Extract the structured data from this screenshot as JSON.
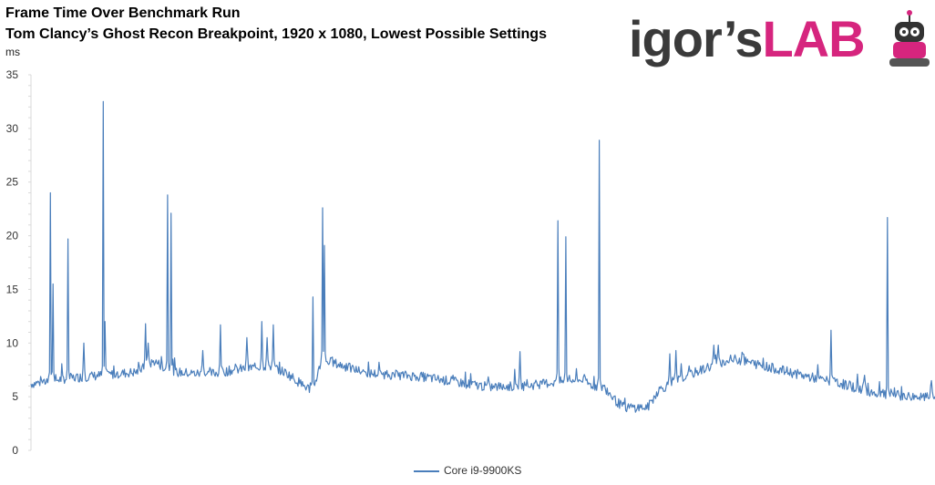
{
  "chart_data": {
    "type": "line",
    "title": "Frame Time Over Benchmark Run",
    "subtitle": "Tom Clancy’s Ghost Recon Breakpoint, 1920 x 1080, Lowest Possible Settings",
    "ylabel": "ms",
    "xlabel": "",
    "ylim": [
      0,
      35
    ],
    "yticks": [
      0,
      5,
      10,
      15,
      20,
      25,
      30,
      35
    ],
    "grid": false,
    "legend_position": "bottom",
    "series": [
      {
        "name": "Core i9-9900KS",
        "color": "#4a7ebb",
        "baseline": [
          [
            0,
            6.2
          ],
          [
            40,
            6.7
          ],
          [
            80,
            7.0
          ],
          [
            120,
            7.3
          ],
          [
            140,
            8.3
          ],
          [
            160,
            7.3
          ],
          [
            200,
            7.1
          ],
          [
            240,
            7.6
          ],
          [
            270,
            7.9
          ],
          [
            290,
            7.2
          ],
          [
            310,
            6.0
          ],
          [
            320,
            5.6
          ],
          [
            330,
            8.5
          ],
          [
            380,
            7.2
          ],
          [
            440,
            6.9
          ],
          [
            480,
            6.4
          ],
          [
            520,
            5.9
          ],
          [
            560,
            6.0
          ],
          [
            600,
            6.4
          ],
          [
            625,
            6.6
          ],
          [
            635,
            6.1
          ],
          [
            650,
            5.9
          ],
          [
            665,
            4.5
          ],
          [
            673,
            4.0
          ],
          [
            700,
            4.0
          ],
          [
            712,
            5.6
          ],
          [
            740,
            6.8
          ],
          [
            770,
            7.8
          ],
          [
            800,
            8.5
          ],
          [
            840,
            7.7
          ],
          [
            880,
            6.9
          ],
          [
            920,
            6.2
          ],
          [
            960,
            5.3
          ],
          [
            1000,
            5.0
          ],
          [
            1026,
            4.9
          ]
        ],
        "spikes": [
          [
            22,
            24.0
          ],
          [
            25,
            15.5
          ],
          [
            42,
            19.7
          ],
          [
            60,
            10.0
          ],
          [
            82,
            32.5
          ],
          [
            84,
            12.0
          ],
          [
            130,
            11.8
          ],
          [
            133,
            10.0
          ],
          [
            155,
            23.8
          ],
          [
            159,
            22.1
          ],
          [
            195,
            9.3
          ],
          [
            215,
            11.7
          ],
          [
            245,
            10.5
          ],
          [
            262,
            12.0
          ],
          [
            268,
            10.5
          ],
          [
            275,
            11.7
          ],
          [
            320,
            14.3
          ],
          [
            331,
            22.6
          ],
          [
            333,
            19.1
          ],
          [
            555,
            9.2
          ],
          [
            598,
            21.4
          ],
          [
            607,
            19.9
          ],
          [
            645,
            28.9
          ],
          [
            725,
            9.0
          ],
          [
            732,
            9.3
          ],
          [
            775,
            9.8
          ],
          [
            780,
            9.8
          ],
          [
            808,
            9.0
          ],
          [
            908,
            11.2
          ],
          [
            946,
            7.0
          ],
          [
            972,
            21.7
          ],
          [
            1022,
            6.5
          ]
        ]
      }
    ]
  },
  "logo": {
    "text_dark": "igor’s",
    "text_pink": "LAB"
  }
}
